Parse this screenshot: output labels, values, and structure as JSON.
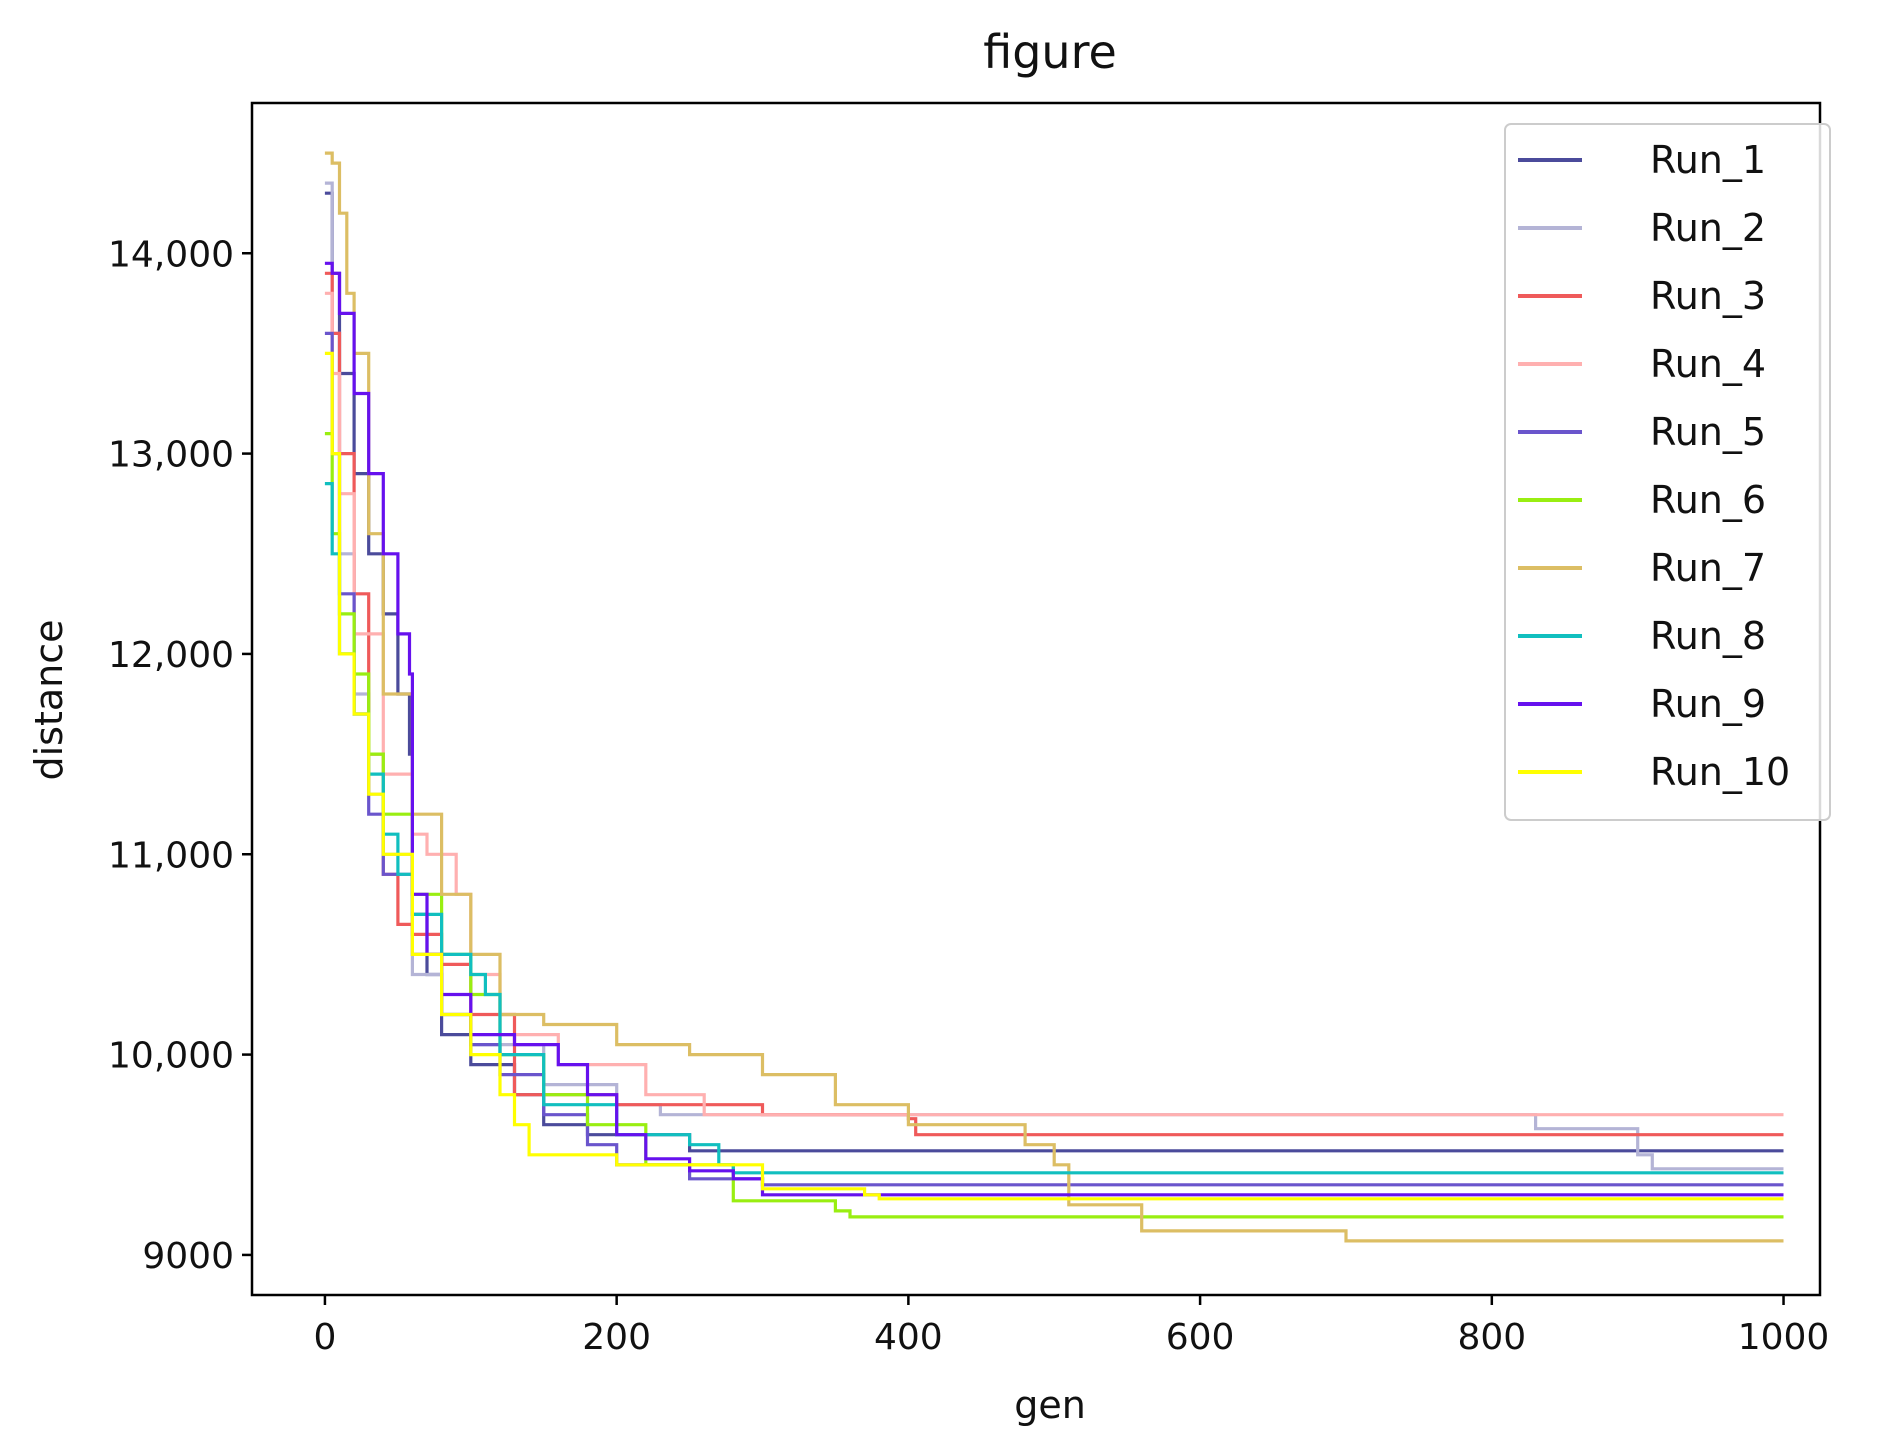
{
  "chart_data": {
    "type": "line",
    "title": "figure",
    "xlabel": "gen",
    "ylabel": "distance",
    "xlim": [
      -50,
      1025
    ],
    "ylim": [
      8800,
      14750
    ],
    "x_ticks": [
      0,
      200,
      400,
      600,
      800,
      1000
    ],
    "x_tick_labels": [
      "0",
      "200",
      "400",
      "600",
      "800",
      "1000"
    ],
    "y_ticks": [
      9000,
      10000,
      11000,
      12000,
      13000,
      14000
    ],
    "y_tick_labels": [
      "9000",
      "10,000",
      "11,000",
      "12,000",
      "13,000",
      "14,000"
    ],
    "grid": false,
    "legend_position": "top-right",
    "series": [
      {
        "name": "Run_1",
        "color": "#4b4b9b",
        "x": [
          0,
          5,
          10,
          20,
          30,
          40,
          50,
          58,
          60,
          70,
          80,
          100,
          130,
          150,
          180,
          250,
          1000
        ],
        "y": [
          14300,
          13900,
          13400,
          12900,
          12500,
          12200,
          11800,
          11500,
          10700,
          10400,
          10100,
          9950,
          9800,
          9650,
          9600,
          9520,
          9520
        ]
      },
      {
        "name": "Run_2",
        "color": "#b4b4d6",
        "x": [
          0,
          5,
          10,
          20,
          30,
          40,
          60,
          80,
          100,
          150,
          200,
          230,
          820,
          830,
          900,
          910,
          1000
        ],
        "y": [
          14350,
          13600,
          12500,
          11800,
          11300,
          11000,
          10400,
          10200,
          10050,
          9850,
          9750,
          9700,
          9700,
          9630,
          9500,
          9430,
          9430
        ]
      },
      {
        "name": "Run_3",
        "color": "#ef5a5a",
        "x": [
          0,
          5,
          10,
          20,
          30,
          40,
          50,
          60,
          80,
          100,
          130,
          200,
          300,
          400,
          405,
          1000
        ],
        "y": [
          13900,
          13600,
          13000,
          12300,
          11500,
          10900,
          10650,
          10600,
          10450,
          10200,
          9800,
          9750,
          9700,
          9680,
          9600,
          9600
        ]
      },
      {
        "name": "Run_4",
        "color": "#ffb0b0",
        "x": [
          0,
          5,
          10,
          20,
          40,
          60,
          70,
          90,
          100,
          120,
          160,
          220,
          260,
          1000
        ],
        "y": [
          13800,
          13400,
          12800,
          12100,
          11400,
          11100,
          11000,
          10800,
          10400,
          10100,
          9950,
          9800,
          9700,
          9700
        ]
      },
      {
        "name": "Run_5",
        "color": "#6a55cc",
        "x": [
          0,
          5,
          10,
          20,
          30,
          40,
          60,
          80,
          100,
          120,
          150,
          180,
          200,
          250,
          300,
          1000
        ],
        "y": [
          13600,
          13000,
          12300,
          11700,
          11200,
          10900,
          10500,
          10200,
          10050,
          9900,
          9700,
          9550,
          9450,
          9380,
          9350,
          9350
        ]
      },
      {
        "name": "Run_6",
        "color": "#99ee11",
        "x": [
          0,
          5,
          10,
          20,
          30,
          40,
          60,
          80,
          100,
          120,
          150,
          180,
          220,
          280,
          350,
          360,
          1000
        ],
        "y": [
          13100,
          12600,
          12200,
          11900,
          11500,
          11200,
          10800,
          10500,
          10300,
          10000,
          9800,
          9650,
          9450,
          9270,
          9220,
          9190,
          9190
        ]
      },
      {
        "name": "Run_7",
        "color": "#dcbe64",
        "x": [
          0,
          5,
          10,
          15,
          20,
          30,
          40,
          60,
          80,
          100,
          120,
          150,
          200,
          250,
          300,
          350,
          400,
          480,
          500,
          510,
          560,
          700,
          1000
        ],
        "y": [
          14500,
          14450,
          14200,
          13800,
          13500,
          12600,
          11800,
          11200,
          10800,
          10500,
          10200,
          10150,
          10050,
          10000,
          9900,
          9750,
          9650,
          9550,
          9450,
          9250,
          9120,
          9070,
          9070
        ]
      },
      {
        "name": "Run_8",
        "color": "#11bfbf",
        "x": [
          0,
          5,
          10,
          20,
          30,
          40,
          50,
          60,
          80,
          100,
          110,
          120,
          150,
          200,
          250,
          270,
          280,
          1000
        ],
        "y": [
          12850,
          12500,
          12000,
          11700,
          11400,
          11100,
          10900,
          10700,
          10500,
          10400,
          10300,
          10000,
          9750,
          9600,
          9550,
          9450,
          9410,
          9410
        ]
      },
      {
        "name": "Run_9",
        "color": "#6611ee",
        "x": [
          0,
          5,
          10,
          20,
          30,
          40,
          50,
          58,
          60,
          70,
          80,
          100,
          130,
          160,
          180,
          200,
          220,
          250,
          280,
          300,
          1000
        ],
        "y": [
          13950,
          13900,
          13700,
          13300,
          12900,
          12500,
          12100,
          11900,
          10800,
          10500,
          10300,
          10100,
          10050,
          9950,
          9800,
          9600,
          9480,
          9420,
          9380,
          9300,
          9300
        ]
      },
      {
        "name": "Run_10",
        "color": "#ffff00",
        "x": [
          0,
          5,
          10,
          20,
          30,
          40,
          60,
          80,
          100,
          120,
          130,
          140,
          200,
          300,
          370,
          380,
          1000
        ],
        "y": [
          13500,
          13000,
          12000,
          11700,
          11300,
          11000,
          10500,
          10200,
          10000,
          9800,
          9650,
          9500,
          9450,
          9330,
          9300,
          9280,
          9280
        ]
      }
    ]
  }
}
